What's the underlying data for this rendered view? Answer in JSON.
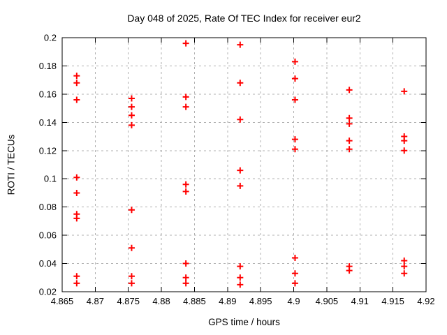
{
  "chart_data": {
    "type": "scatter",
    "title": "Day 048 of 2025, Rate Of TEC Index for receiver eur2",
    "xlabel": "GPS time / hours",
    "ylabel": "ROTI / TECUs",
    "xlim": [
      4.865,
      4.92
    ],
    "ylim": [
      0.02,
      0.2
    ],
    "xticks": [
      4.865,
      4.87,
      4.875,
      4.88,
      4.885,
      4.89,
      4.895,
      4.9,
      4.905,
      4.91,
      4.915,
      4.92
    ],
    "yticks": [
      0.02,
      0.04,
      0.06,
      0.08,
      0.1,
      0.12,
      0.14,
      0.16,
      0.18,
      0.2
    ],
    "grid": true,
    "legend_position": "none",
    "marker": {
      "shape": "plus",
      "size": 9
    },
    "colors": {
      "marker": "#ff0000",
      "grid": "#b0b0b0",
      "frame": "#000000",
      "background": "#ffffff"
    },
    "series": [
      {
        "name": "ROTI",
        "color": "#ff0000",
        "points": [
          [
            4.8672,
            0.173
          ],
          [
            4.8672,
            0.168
          ],
          [
            4.8672,
            0.156
          ],
          [
            4.8672,
            0.101
          ],
          [
            4.8672,
            0.09
          ],
          [
            4.8672,
            0.075
          ],
          [
            4.8672,
            0.072
          ],
          [
            4.8672,
            0.031
          ],
          [
            4.8672,
            0.026
          ],
          [
            4.8755,
            0.157
          ],
          [
            4.8755,
            0.151
          ],
          [
            4.8755,
            0.145
          ],
          [
            4.8755,
            0.138
          ],
          [
            4.8755,
            0.078
          ],
          [
            4.8755,
            0.051
          ],
          [
            4.8755,
            0.031
          ],
          [
            4.8755,
            0.026
          ],
          [
            4.8837,
            0.196
          ],
          [
            4.8837,
            0.158
          ],
          [
            4.8837,
            0.151
          ],
          [
            4.8837,
            0.096
          ],
          [
            4.8837,
            0.091
          ],
          [
            4.8837,
            0.04
          ],
          [
            4.8837,
            0.03
          ],
          [
            4.8837,
            0.026
          ],
          [
            4.8919,
            0.195
          ],
          [
            4.8919,
            0.168
          ],
          [
            4.8919,
            0.142
          ],
          [
            4.8919,
            0.106
          ],
          [
            4.8919,
            0.095
          ],
          [
            4.8919,
            0.038
          ],
          [
            4.8919,
            0.03
          ],
          [
            4.8919,
            0.025
          ],
          [
            4.9002,
            0.183
          ],
          [
            4.9002,
            0.171
          ],
          [
            4.9002,
            0.156
          ],
          [
            4.9002,
            0.128
          ],
          [
            4.9002,
            0.121
          ],
          [
            4.9002,
            0.044
          ],
          [
            4.9002,
            0.033
          ],
          [
            4.9002,
            0.026
          ],
          [
            4.9084,
            0.163
          ],
          [
            4.9084,
            0.143
          ],
          [
            4.9084,
            0.139
          ],
          [
            4.9084,
            0.127
          ],
          [
            4.9084,
            0.121
          ],
          [
            4.9084,
            0.038
          ],
          [
            4.9084,
            0.035
          ],
          [
            4.9167,
            0.162
          ],
          [
            4.9167,
            0.13
          ],
          [
            4.9167,
            0.127
          ],
          [
            4.9167,
            0.12
          ],
          [
            4.9167,
            0.042
          ],
          [
            4.9167,
            0.038
          ],
          [
            4.9167,
            0.033
          ]
        ]
      }
    ]
  }
}
